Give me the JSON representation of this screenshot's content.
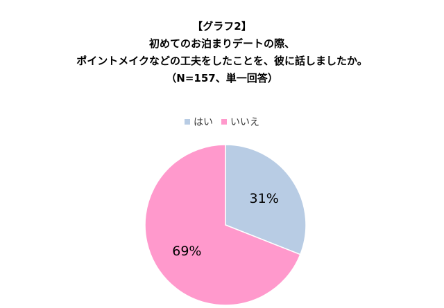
{
  "chart_data": {
    "type": "pie",
    "title_lines": [
      "【グラフ2】",
      "初めてのお泊まりデートの際、",
      "ポイントメイクなどの工夫をしたことを、彼に話しましたか。",
      "（N=157、単一回答）"
    ],
    "categories": [
      "はい",
      "いいえ"
    ],
    "values": [
      31,
      69
    ],
    "data_labels": [
      "31%",
      "69%"
    ],
    "colors": [
      "#b8cce4",
      "#ff99cc"
    ],
    "start_angle_deg": 0,
    "direction": "clockwise",
    "legend_position": "top"
  }
}
